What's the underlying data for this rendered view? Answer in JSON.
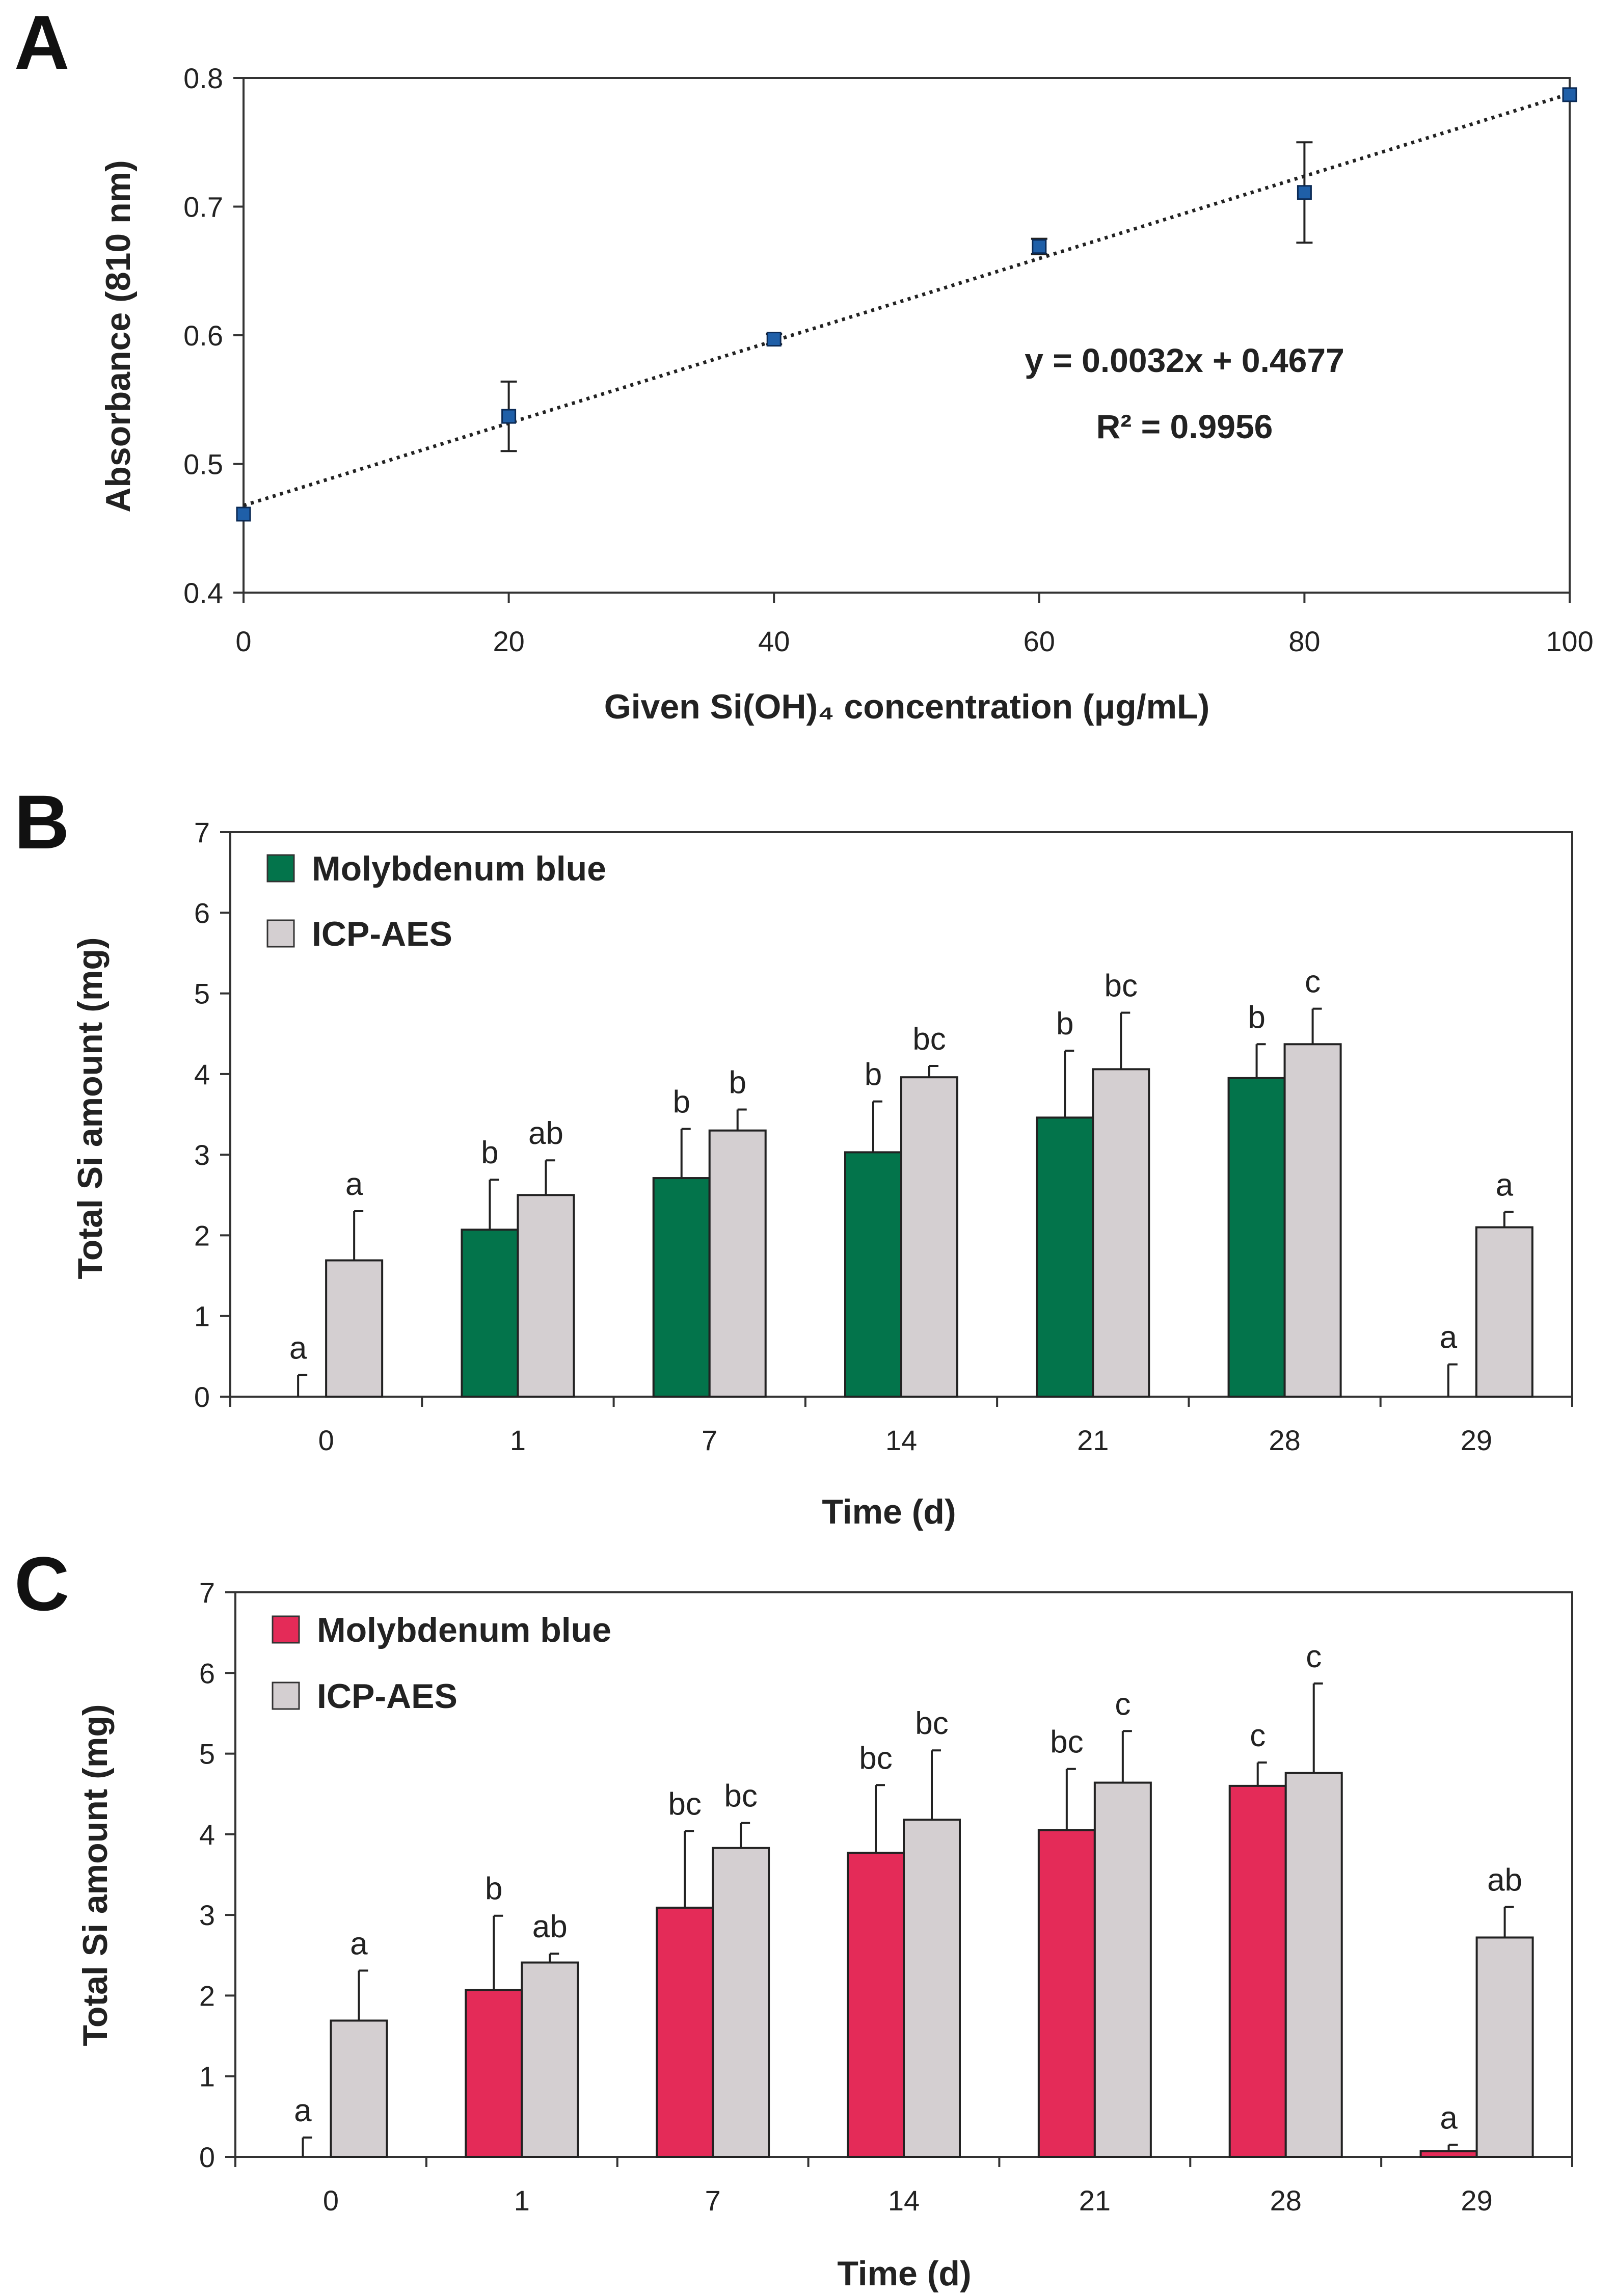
{
  "chart_data": [
    {
      "panel": "A",
      "type": "scatter",
      "xlabel": "Given Si(OH)₄ concentration (μg/mL)",
      "ylabel": "Absorbance (810 nm)",
      "xlim": [
        0,
        100
      ],
      "ylim": [
        0.4,
        0.8
      ],
      "xticks": [
        0,
        20,
        40,
        60,
        80,
        100
      ],
      "yticks": [
        0.4,
        0.5,
        0.6,
        0.7,
        0.8
      ],
      "ytick_labels": [
        "0.4",
        "0.5",
        "0.6",
        "0.7",
        "0.8"
      ],
      "x": [
        0,
        20,
        40,
        60,
        80,
        100
      ],
      "y": [
        0.461,
        0.537,
        0.597,
        0.669,
        0.711,
        0.787
      ],
      "error": [
        0.0,
        0.027,
        0.004,
        0.006,
        0.039,
        0.0
      ],
      "trendline": {
        "slope": 0.0032,
        "intercept": 0.4677
      },
      "equation": "y = 0.0032x + 0.4677",
      "r2": "R² = 0.9956",
      "marker_color": "#1f5fa8"
    },
    {
      "panel": "B",
      "type": "bar",
      "xlabel": "Time (d)",
      "ylabel": "Total Si amount (mg)",
      "ylim": [
        0,
        7
      ],
      "yticks": [
        0,
        1,
        2,
        3,
        4,
        5,
        6,
        7
      ],
      "categories": [
        "0",
        "1",
        "7",
        "14",
        "21",
        "28",
        "29"
      ],
      "series": [
        {
          "name": "Molybdenum blue",
          "color": "#03744b",
          "values": [
            0,
            2.07,
            2.71,
            3.03,
            3.46,
            3.95,
            0
          ],
          "errors": [
            0.27,
            0.62,
            0.61,
            0.63,
            0.83,
            0.42,
            0.4
          ],
          "labels": [
            "a",
            "b",
            "b",
            "b",
            "b",
            "b",
            "a"
          ]
        },
        {
          "name": "ICP-AES",
          "color": "#d4cfd1",
          "values": [
            1.69,
            2.5,
            3.3,
            3.96,
            4.06,
            4.37,
            2.1
          ],
          "errors": [
            0.61,
            0.43,
            0.26,
            0.14,
            0.7,
            0.44,
            0.19
          ],
          "labels": [
            "a",
            "ab",
            "b",
            "bc",
            "bc",
            "c",
            "a"
          ]
        }
      ],
      "legend_position": "top-left"
    },
    {
      "panel": "C",
      "type": "bar",
      "xlabel": "Time (d)",
      "ylabel": "Total Si amount (mg)",
      "ylim": [
        0,
        7
      ],
      "yticks": [
        0,
        1,
        2,
        3,
        4,
        5,
        6,
        7
      ],
      "categories": [
        "0",
        "1",
        "7",
        "14",
        "21",
        "28",
        "29"
      ],
      "series": [
        {
          "name": "Molybdenum blue",
          "color": "#e42b58",
          "values": [
            0,
            2.07,
            3.09,
            3.77,
            4.05,
            4.6,
            0.07
          ],
          "errors": [
            0.24,
            0.92,
            0.95,
            0.84,
            0.76,
            0.29,
            0.08
          ],
          "labels": [
            "a",
            "b",
            "bc",
            "bc",
            "bc",
            "c",
            "a"
          ]
        },
        {
          "name": "ICP-AES",
          "color": "#d4cfd1",
          "values": [
            1.69,
            2.41,
            3.83,
            4.18,
            4.64,
            4.76,
            2.72
          ],
          "errors": [
            0.62,
            0.11,
            0.31,
            0.86,
            0.64,
            1.11,
            0.38
          ],
          "labels": [
            "a",
            "ab",
            "bc",
            "bc",
            "c",
            "c",
            "ab"
          ]
        }
      ],
      "legend_position": "top-left"
    }
  ]
}
